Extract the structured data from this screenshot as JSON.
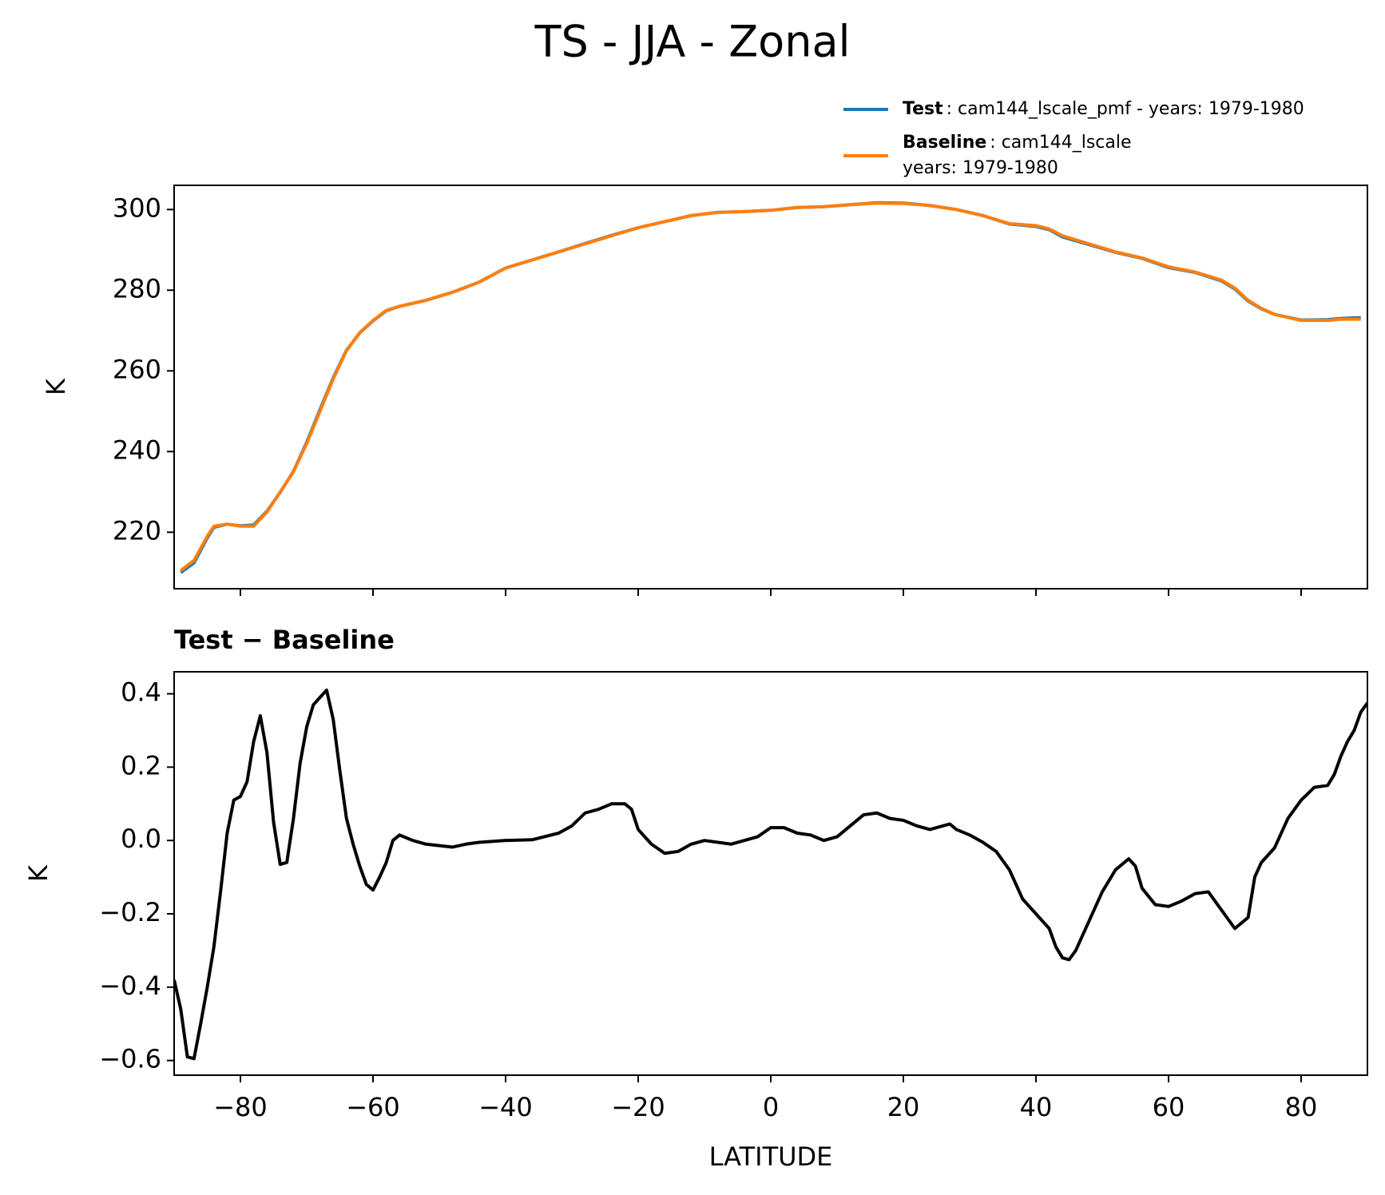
{
  "title": "TS - JJA - Zonal",
  "chart_data": [
    {
      "type": "line",
      "ylabel": "K",
      "x": [
        -89,
        -87,
        -85,
        -84,
        -82,
        -80,
        -78,
        -76,
        -74,
        -72,
        -70,
        -68,
        -66,
        -64,
        -62,
        -60,
        -58,
        -56,
        -52,
        -48,
        -44,
        -40,
        -36,
        -32,
        -28,
        -24,
        -20,
        -16,
        -12,
        -8,
        -4,
        0,
        4,
        8,
        12,
        16,
        20,
        24,
        28,
        32,
        36,
        40,
        42,
        44,
        48,
        52,
        56,
        60,
        64,
        68,
        70,
        72,
        74,
        76,
        80,
        84,
        86,
        89
      ],
      "series": [
        {
          "name": "Test",
          "detail": ": cam144_lscale_pmf - years: 1979-1980",
          "color": "#1f77b4",
          "values": [
            210.0,
            212.4,
            218.6,
            221.2,
            222.0,
            221.6,
            221.8,
            225.2,
            229.9,
            235.1,
            242.3,
            250.4,
            258.3,
            265.1,
            269.4,
            272.4,
            274.9,
            276.0,
            277.5,
            279.5,
            282.0,
            285.5,
            287.5,
            289.5,
            291.6,
            293.6,
            295.5,
            297.0,
            298.5,
            299.3,
            299.5,
            299.8,
            300.5,
            300.7,
            301.2,
            301.7,
            301.6,
            301.0,
            300.0,
            298.5,
            296.4,
            295.8,
            295.0,
            293.2,
            291.3,
            289.4,
            287.9,
            285.6,
            284.4,
            282.3,
            280.3,
            277.3,
            275.4,
            274.0,
            272.6,
            272.7,
            273.0,
            273.2
          ]
        },
        {
          "name": "Baseline",
          "detail": [
            ": cam144_lscale",
            "years: 1979-1980"
          ],
          "color": "#ff7f0e",
          "values": [
            210.5,
            213.0,
            219.0,
            221.5,
            222.0,
            221.5,
            221.5,
            225.0,
            230.0,
            235.0,
            242.0,
            250.0,
            258.0,
            265.0,
            269.5,
            272.5,
            275.0,
            276.0,
            277.5,
            279.5,
            282.0,
            285.5,
            287.5,
            289.5,
            291.5,
            293.5,
            295.5,
            297.0,
            298.5,
            299.3,
            299.5,
            299.8,
            300.5,
            300.7,
            301.2,
            301.6,
            301.5,
            301.0,
            300.0,
            298.5,
            296.5,
            296.0,
            295.2,
            293.5,
            291.5,
            289.5,
            288.0,
            285.8,
            284.5,
            282.5,
            280.5,
            277.5,
            275.5,
            274.0,
            272.5,
            272.5,
            272.8,
            272.8
          ]
        }
      ],
      "xlim": [
        -90,
        90
      ],
      "xticks": [
        -80,
        -60,
        -40,
        -20,
        0,
        20,
        40,
        60,
        80
      ],
      "ylim": [
        206,
        306
      ],
      "yticks": [
        220,
        240,
        260,
        280,
        300
      ]
    },
    {
      "type": "line",
      "subtitle": "Test − Baseline",
      "xlabel": "LATITUDE",
      "ylabel": "K",
      "x": [
        -90,
        -89,
        -88,
        -87,
        -86,
        -85,
        -84,
        -83,
        -82,
        -81,
        -80,
        -79,
        -78,
        -77,
        -76,
        -75,
        -74,
        -73,
        -72,
        -71,
        -70,
        -69,
        -68,
        -67,
        -66,
        -65,
        -64,
        -63,
        -62,
        -61,
        -60,
        -59,
        -58,
        -57,
        -56,
        -54,
        -52,
        -48,
        -46,
        -44,
        -40,
        -36,
        -32,
        -30,
        -28,
        -26,
        -24,
        -22,
        -21,
        -20,
        -18,
        -16,
        -14,
        -12,
        -10,
        -6,
        -4,
        -2,
        0,
        2,
        4,
        6,
        8,
        10,
        12,
        14,
        16,
        18,
        20,
        22,
        24,
        26,
        27,
        28,
        30,
        32,
        34,
        36,
        38,
        40,
        42,
        43,
        44,
        45,
        46,
        48,
        50,
        52,
        54,
        55,
        56,
        58,
        60,
        62,
        64,
        66,
        68,
        70,
        72,
        73,
        74,
        76,
        78,
        80,
        82,
        84,
        85,
        86,
        87,
        88,
        89,
        90
      ],
      "series": [
        {
          "name": "Test − Baseline",
          "color": "#000000",
          "values": [
            -0.38,
            -0.46,
            -0.59,
            -0.595,
            -0.5,
            -0.4,
            -0.29,
            -0.14,
            0.02,
            0.11,
            0.12,
            0.16,
            0.27,
            0.34,
            0.24,
            0.05,
            -0.065,
            -0.06,
            0.06,
            0.21,
            0.31,
            0.37,
            0.39,
            0.41,
            0.33,
            0.19,
            0.06,
            -0.01,
            -0.07,
            -0.12,
            -0.135,
            -0.1,
            -0.06,
            0.0,
            0.015,
            0.0,
            -0.01,
            -0.018,
            -0.01,
            -0.005,
            0.0,
            0.002,
            0.02,
            0.04,
            0.075,
            0.085,
            0.1,
            0.1,
            0.085,
            0.03,
            -0.01,
            -0.035,
            -0.03,
            -0.01,
            0.0,
            -0.01,
            0.0,
            0.01,
            0.035,
            0.035,
            0.02,
            0.015,
            0.0,
            0.01,
            0.04,
            0.07,
            0.075,
            0.06,
            0.055,
            0.04,
            0.03,
            0.04,
            0.045,
            0.03,
            0.015,
            -0.005,
            -0.03,
            -0.08,
            -0.16,
            -0.2,
            -0.24,
            -0.29,
            -0.32,
            -0.325,
            -0.3,
            -0.22,
            -0.14,
            -0.08,
            -0.05,
            -0.07,
            -0.13,
            -0.175,
            -0.18,
            -0.165,
            -0.145,
            -0.14,
            -0.19,
            -0.24,
            -0.21,
            -0.1,
            -0.06,
            -0.02,
            0.06,
            0.11,
            0.145,
            0.15,
            0.18,
            0.23,
            0.27,
            0.3,
            0.35,
            0.375
          ]
        }
      ],
      "xlim": [
        -90,
        90
      ],
      "xticks": [
        {
          "value": -80,
          "label": "−80"
        },
        {
          "value": -60,
          "label": "−60"
        },
        {
          "value": -40,
          "label": "−40"
        },
        {
          "value": -20,
          "label": "−20"
        },
        {
          "value": 0,
          "label": "0"
        },
        {
          "value": 20,
          "label": "20"
        },
        {
          "value": 40,
          "label": "40"
        },
        {
          "value": 60,
          "label": "60"
        },
        {
          "value": 80,
          "label": "80"
        }
      ],
      "ylim": [
        -0.64,
        0.46
      ],
      "yticks": [
        {
          "value": -0.6,
          "label": "−0.6"
        },
        {
          "value": -0.4,
          "label": "−0.4"
        },
        {
          "value": -0.2,
          "label": "−0.2"
        },
        {
          "value": 0,
          "label": "0.0"
        },
        {
          "value": 0.2,
          "label": "0.2"
        },
        {
          "value": 0.4,
          "label": "0.4"
        }
      ]
    }
  ]
}
